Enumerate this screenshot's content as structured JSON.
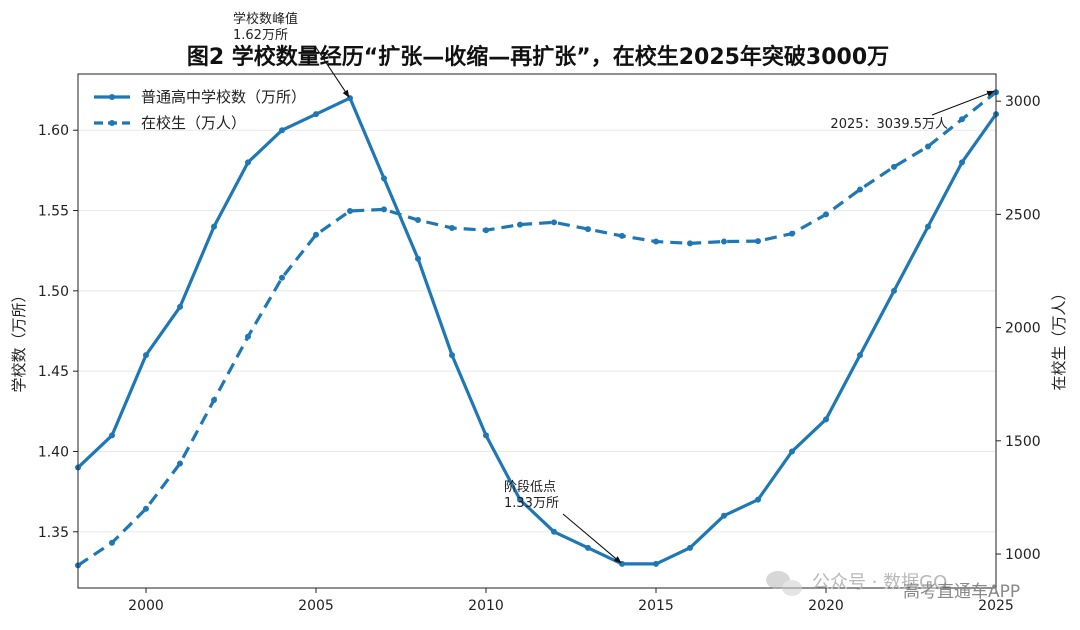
{
  "chart_data": {
    "type": "line",
    "title": "图2 学校数量经历“扩张—收缩—再扩张”，在校生2025年突破3000万",
    "ylabel_left": "学校数（万所）",
    "ylabel_right": "在校生（万人）",
    "x": [
      1998,
      1999,
      2000,
      2001,
      2002,
      2003,
      2004,
      2005,
      2006,
      2007,
      2008,
      2009,
      2010,
      2011,
      2012,
      2013,
      2014,
      2015,
      2016,
      2017,
      2018,
      2019,
      2020,
      2021,
      2022,
      2023,
      2024,
      2025
    ],
    "xlim": [
      1998,
      2025
    ],
    "xticks": [
      "2000",
      "2005",
      "2010",
      "2015",
      "2020",
      "2025"
    ],
    "ylim_left": [
      1.315,
      1.635
    ],
    "yticks_left": [
      "1.35",
      "1.40",
      "1.45",
      "1.50",
      "1.55",
      "1.60"
    ],
    "ylim_right": [
      850,
      3120
    ],
    "yticks_right": [
      "1000",
      "1500",
      "2000",
      "2500",
      "3000"
    ],
    "grid": "horizontal",
    "legend_position": "top-left",
    "series": [
      {
        "name": "普通高中学校数（万所）",
        "axis": "left",
        "style": "solid",
        "color": "#1f77b4",
        "values": [
          1.39,
          1.41,
          1.46,
          1.49,
          1.54,
          1.58,
          1.6,
          1.61,
          1.62,
          1.57,
          1.52,
          1.46,
          1.41,
          1.37,
          1.35,
          1.34,
          1.33,
          1.33,
          1.34,
          1.36,
          1.37,
          1.4,
          1.42,
          1.46,
          1.5,
          1.54,
          1.58,
          1.61
        ]
      },
      {
        "name": "在校生（万人）",
        "axis": "right",
        "style": "dashed",
        "color": "#1f77b4",
        "values": [
          950,
          1050,
          1200,
          1400,
          1680,
          1960,
          2220,
          2410,
          2515,
          2522,
          2475,
          2440,
          2430,
          2455,
          2465,
          2435,
          2405,
          2380,
          2372,
          2380,
          2382,
          2415,
          2500,
          2610,
          2710,
          2800,
          2920,
          3039.5
        ]
      }
    ],
    "annotations": [
      {
        "lines": [
          "学校数峰值",
          "1.62万所"
        ],
        "x": 2006,
        "y": 1.62,
        "axis": "left"
      },
      {
        "lines": [
          "阶段低点",
          "1.33万所"
        ],
        "x": 2014,
        "y": 1.33,
        "axis": "left"
      },
      {
        "lines": [
          "2025：3039.5万人"
        ],
        "x": 2025,
        "y": 3039.5,
        "axis": "right"
      }
    ]
  },
  "watermark": {
    "icon": "wechat-icon",
    "text": "公众号 · 数据GO",
    "overlay": "高考直通车APP"
  }
}
